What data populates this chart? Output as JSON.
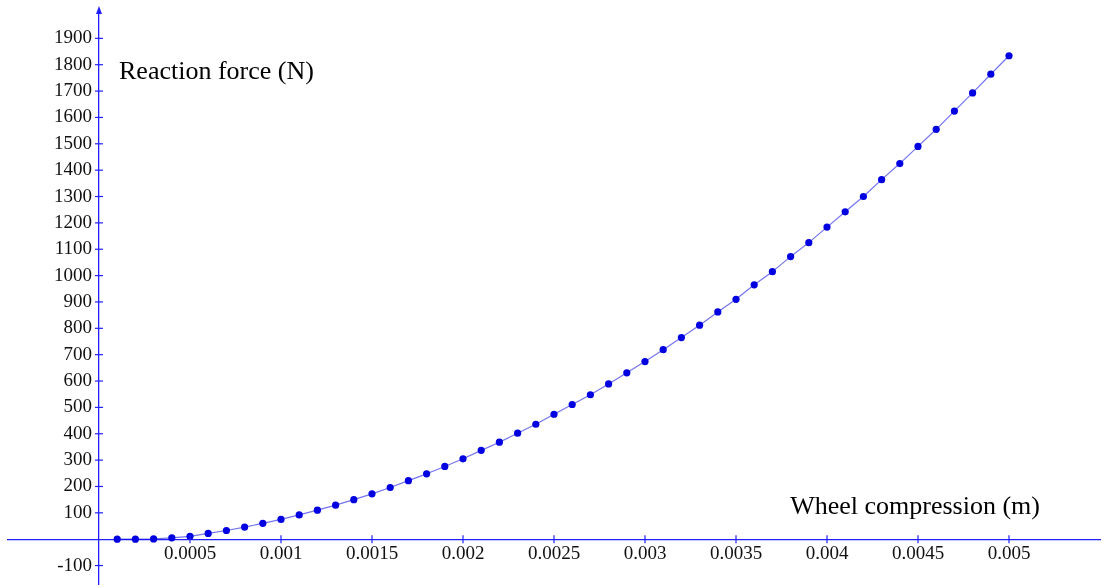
{
  "chart_data": {
    "type": "line",
    "xlabel": "Wheel compression (m)",
    "ylabel": "Reaction force (N)",
    "x": [
      0.0001,
      0.0002,
      0.0003,
      0.0004,
      0.0005,
      0.0006,
      0.0007,
      0.0008,
      0.0009,
      0.001,
      0.0011,
      0.0012,
      0.0013,
      0.0014,
      0.0015,
      0.0016,
      0.0017,
      0.0018,
      0.0019,
      0.002,
      0.0021,
      0.0022,
      0.0023,
      0.0024,
      0.0025,
      0.0026,
      0.0027,
      0.0028,
      0.0029,
      0.003,
      0.0031,
      0.0032,
      0.0033,
      0.0034,
      0.0035,
      0.0036,
      0.0037,
      0.0038,
      0.0039,
      0.004,
      0.0041,
      0.0042,
      0.0043,
      0.0044,
      0.0045,
      0.0046,
      0.0047,
      0.0048,
      0.0049,
      0.005
    ],
    "series": [
      {
        "color": "#0000e0",
        "values": [
          0,
          0,
          1,
          5,
          11,
          22,
          33,
          46,
          60,
          75,
          92,
          110,
          129,
          150,
          172,
          196,
          222,
          248,
          276,
          305,
          337,
          368,
          402,
          436,
          474,
          511,
          548,
          589,
          631,
          674,
          719,
          765,
          812,
          862,
          910,
          965,
          1015,
          1072,
          1125,
          1184,
          1242,
          1300,
          1364,
          1425,
          1490,
          1555,
          1624,
          1693,
          1764,
          1834
        ]
      }
    ],
    "xlim": [
      -0.0005,
      0.0055
    ],
    "ylim": [
      -170,
      2000
    ],
    "xticks": [
      0.0005,
      0.001,
      0.0015,
      0.002,
      0.0025,
      0.003,
      0.0035,
      0.004,
      0.0045,
      0.005
    ],
    "yticks": [
      -100,
      100,
      200,
      300,
      400,
      500,
      600,
      700,
      800,
      900,
      1000,
      1100,
      1200,
      1300,
      1400,
      1500,
      1600,
      1700,
      1800,
      1900
    ],
    "marker": "circle",
    "line_style": "solid",
    "grid": false,
    "legend": false
  }
}
